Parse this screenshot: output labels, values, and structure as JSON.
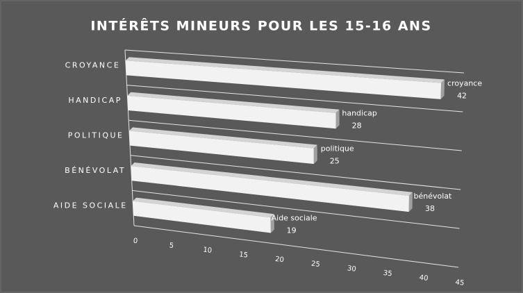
{
  "chart_data": {
    "type": "bar3d",
    "title": "INTÉRÊTS MINEURS POUR LES 15-16 ANS",
    "categories": [
      "CROYANCE",
      "HANDICAP",
      "POLITIQUE",
      "BÉNÉVOLAT",
      "AIDE SOCIALE"
    ],
    "point_labels": [
      "croyance",
      "handicap",
      "politique",
      "bénévolat",
      "Aide sociale"
    ],
    "values": [
      42,
      28,
      25,
      38,
      19
    ],
    "color": "#f2f2f2",
    "xlim": [
      0,
      45
    ],
    "xticks": [
      0,
      5,
      10,
      15,
      20,
      25,
      30,
      35,
      40,
      45
    ],
    "grid": true
  }
}
